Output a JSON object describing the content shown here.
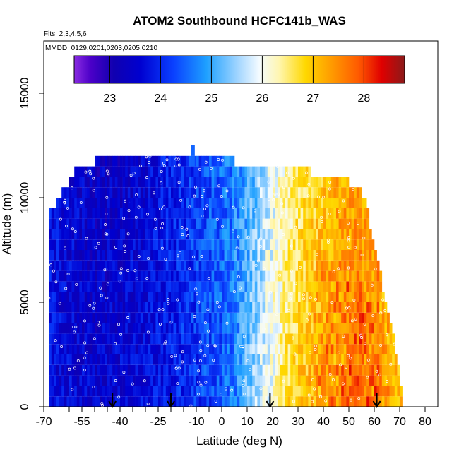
{
  "chart_data": {
    "type": "heatmap",
    "title": "ATOM2 Southbound HCFC141b_WAS",
    "flights_label": "Flts: 2,3,4,5,6",
    "dates_label": "MMDD: 0129,0201,0203,0205,0210",
    "xlabel": "Latitude (deg N)",
    "ylabel": "Altitude (m)",
    "xlim": [
      -70,
      85
    ],
    "ylim": [
      0,
      17500
    ],
    "x_ticks": [
      -70,
      -55,
      -40,
      -25,
      -10,
      0,
      10,
      20,
      30,
      40,
      50,
      60,
      70,
      80
    ],
    "x_tick_labels": [
      "-70",
      "-55",
      "-40",
      "-25",
      "-10",
      "0",
      "10",
      "20",
      "30",
      "40",
      "50",
      "60",
      "70",
      "80"
    ],
    "x_minor_ticks": [
      -60,
      -50,
      -45,
      -35,
      -30,
      -20,
      -15,
      -5
    ],
    "y_ticks": [
      0,
      5000,
      10000,
      15000
    ],
    "y_tick_labels": [
      "0",
      "5000",
      "10000",
      "15000"
    ],
    "colorbar": {
      "range": [
        22.3,
        28.8
      ],
      "ticks": [
        23,
        24,
        25,
        26,
        27,
        28
      ],
      "tick_labels": [
        "23",
        "24",
        "25",
        "26",
        "27",
        "28"
      ]
    },
    "arrow_latitudes": [
      -43,
      -20,
      19,
      61
    ],
    "altitude_bins_m": [
      0,
      500,
      1000,
      1500,
      2000,
      2500,
      3000,
      3500,
      4000,
      4500,
      5000,
      5500,
      6000,
      6500,
      7000,
      7500,
      8000,
      8500,
      9000,
      9500,
      10000,
      10500,
      11000,
      11500
    ],
    "lat_extent_per_bin": [
      [
        -68,
        71
      ],
      [
        -68,
        71
      ],
      [
        -68,
        70
      ],
      [
        -68,
        70
      ],
      [
        -68,
        69
      ],
      [
        -68,
        68
      ],
      [
        -68,
        68
      ],
      [
        -68,
        67
      ],
      [
        -68,
        66
      ],
      [
        -68,
        65
      ],
      [
        -68,
        64
      ],
      [
        -68,
        63
      ],
      [
        -68,
        63
      ],
      [
        -68,
        62
      ],
      [
        -68,
        61
      ],
      [
        -68,
        60
      ],
      [
        -68,
        59
      ],
      [
        -68,
        58
      ],
      [
        -68,
        58
      ],
      [
        -65,
        57
      ],
      [
        -63,
        55
      ],
      [
        -60,
        50
      ],
      [
        -58,
        35
      ],
      [
        -50,
        5
      ]
    ],
    "gradient_profile": {
      "latitudes": [
        -70,
        -60,
        -50,
        -40,
        -30,
        -20,
        -10,
        0,
        5,
        10,
        15,
        20,
        25,
        30,
        35,
        40,
        45,
        50,
        55,
        60,
        65,
        70
      ],
      "values_surface": [
        23.7,
        23.6,
        23.5,
        23.6,
        23.7,
        23.9,
        24.1,
        24.4,
        24.7,
        25.2,
        25.7,
        26.1,
        26.6,
        26.9,
        27.1,
        27.3,
        27.4,
        27.6,
        27.7,
        27.6,
        27.4,
        27.1
      ],
      "values_upper": [
        23.9,
        23.6,
        23.3,
        23.4,
        23.6,
        23.9,
        24.2,
        24.5,
        24.7,
        25.0,
        25.4,
        25.9,
        26.2,
        26.5,
        26.7,
        26.9,
        27.1,
        27.2,
        27.2,
        27.0,
        26.8,
        26.6
      ]
    },
    "legend": "top (horizontal colorbar)"
  }
}
